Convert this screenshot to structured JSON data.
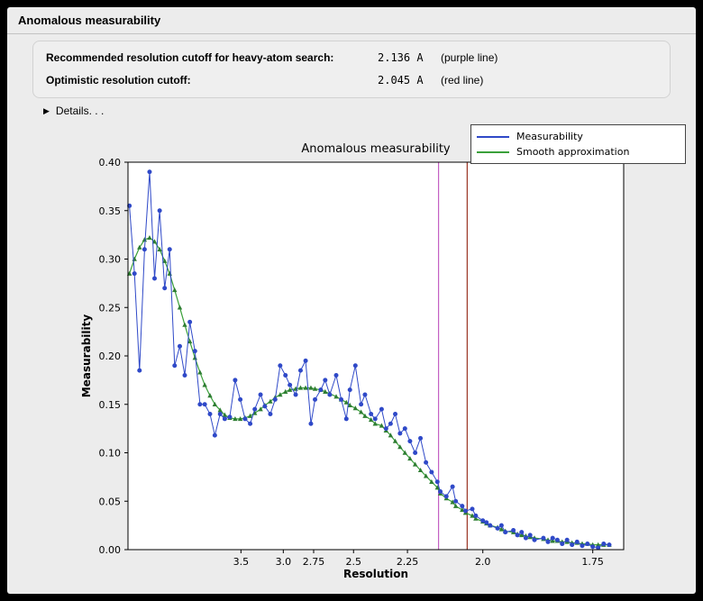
{
  "window": {
    "title": "Anomalous measurability"
  },
  "info": {
    "rows": [
      {
        "label": "Recommended resolution cutoff for heavy-atom search:",
        "value": "2.136 A",
        "note": "(purple line)"
      },
      {
        "label": "Optimistic resolution cutoff:",
        "value": "2.045 A",
        "note": "(red line)"
      }
    ],
    "details_label": "Details. . ."
  },
  "colors": {
    "window_bg": "#ececec",
    "plot_bg": "#ffffff",
    "measurability_blue": "#2f49c8",
    "smooth_green": "#3aa03a",
    "smooth_marker_green": "#2e7d32",
    "purple_line": "#c45fc4",
    "red_line": "#993322"
  },
  "chart_data": {
    "type": "line",
    "title": "Anomalous measurability",
    "xlabel": "Resolution",
    "ylabel": "Measurability",
    "x_scale": "inverse_d_squared",
    "xlim_d": [
      18.3,
      1.695
    ],
    "ylim": [
      0.0,
      0.4
    ],
    "grid": false,
    "legend": {
      "position": "top-right"
    },
    "x_axis": {
      "ticks": [
        {
          "d": 3.5,
          "label": "3.5"
        },
        {
          "d": 3.0,
          "label": "3.0"
        },
        {
          "d": 2.75,
          "label": "2.75"
        },
        {
          "d": 2.5,
          "label": "2.5"
        },
        {
          "d": 2.25,
          "label": "2.25"
        },
        {
          "d": 2.0,
          "label": "2.0"
        },
        {
          "d": 1.75,
          "label": "1.75"
        }
      ]
    },
    "y_axis": {
      "range": [
        0.0,
        0.4
      ],
      "ticks": [
        {
          "v": 0.0,
          "label": "0.00"
        },
        {
          "v": 0.05,
          "label": "0.05"
        },
        {
          "v": 0.1,
          "label": "0.10"
        },
        {
          "v": 0.15,
          "label": "0.15"
        },
        {
          "v": 0.2,
          "label": "0.20"
        },
        {
          "v": 0.25,
          "label": "0.25"
        },
        {
          "v": 0.3,
          "label": "0.30"
        },
        {
          "v": 0.35,
          "label": "0.35"
        },
        {
          "v": 0.4,
          "label": "0.40"
        }
      ]
    },
    "vlines": [
      {
        "d": 2.136,
        "color": "#c45fc4",
        "name": "purple line"
      },
      {
        "d": 2.045,
        "color": "#993322",
        "name": "red line"
      }
    ],
    "x_d": [
      15.81,
      11.55,
      9.53,
      8.3,
      7.45,
      6.82,
      6.32,
      5.92,
      5.59,
      5.31,
      5.06,
      4.85,
      4.66,
      4.49,
      4.34,
      4.21,
      4.08,
      3.97,
      3.86,
      3.77,
      3.68,
      3.59,
      3.51,
      3.44,
      3.37,
      3.31,
      3.24,
      3.19,
      3.13,
      3.08,
      3.03,
      2.98,
      2.94,
      2.89,
      2.85,
      2.81,
      2.77,
      2.74,
      2.7,
      2.67,
      2.64,
      2.6,
      2.57,
      2.54,
      2.52,
      2.49,
      2.46,
      2.44,
      2.41,
      2.39,
      2.36,
      2.34,
      2.32,
      2.3,
      2.28,
      2.26,
      2.24,
      2.22,
      2.2,
      2.18,
      2.16,
      2.14,
      2.13,
      2.11,
      2.09,
      2.08,
      2.06,
      2.05,
      2.03,
      2.02,
      2.0,
      1.99,
      1.98,
      1.96,
      1.95,
      1.94,
      1.92,
      1.91,
      1.9,
      1.89,
      1.88,
      1.87,
      1.85,
      1.84,
      1.83,
      1.82,
      1.81,
      1.8,
      1.79,
      1.78,
      1.77,
      1.76,
      1.75,
      1.74,
      1.73,
      1.72
    ],
    "series": [
      {
        "name": "Measurability",
        "color": "#2f49c8",
        "marker": "circle",
        "values": [
          0.355,
          0.285,
          0.185,
          0.31,
          0.39,
          0.28,
          0.35,
          0.27,
          0.31,
          0.19,
          0.21,
          0.18,
          0.235,
          0.205,
          0.15,
          0.15,
          0.14,
          0.118,
          0.14,
          0.135,
          0.137,
          0.175,
          0.155,
          0.135,
          0.13,
          0.145,
          0.16,
          0.148,
          0.14,
          0.155,
          0.19,
          0.18,
          0.17,
          0.16,
          0.185,
          0.195,
          0.13,
          0.155,
          0.165,
          0.175,
          0.16,
          0.18,
          0.155,
          0.135,
          0.165,
          0.19,
          0.15,
          0.16,
          0.14,
          0.135,
          0.145,
          0.125,
          0.13,
          0.14,
          0.12,
          0.125,
          0.112,
          0.1,
          0.115,
          0.09,
          0.08,
          0.07,
          0.06,
          0.055,
          0.065,
          0.05,
          0.045,
          0.04,
          0.042,
          0.035,
          0.03,
          0.028,
          0.025,
          0.022,
          0.025,
          0.018,
          0.02,
          0.015,
          0.018,
          0.012,
          0.015,
          0.01,
          0.012,
          0.008,
          0.012,
          0.01,
          0.006,
          0.01,
          0.005,
          0.008,
          0.004,
          0.006,
          0.003,
          0.002,
          0.006,
          0.005
        ]
      },
      {
        "name": "Smooth approximation",
        "color": "#3aa03a",
        "marker": "triangle",
        "marker_color": "#2e7d32",
        "values": [
          0.285,
          0.3,
          0.312,
          0.32,
          0.322,
          0.318,
          0.31,
          0.298,
          0.285,
          0.268,
          0.25,
          0.232,
          0.215,
          0.198,
          0.183,
          0.17,
          0.159,
          0.15,
          0.144,
          0.139,
          0.136,
          0.135,
          0.135,
          0.136,
          0.138,
          0.141,
          0.145,
          0.149,
          0.153,
          0.157,
          0.16,
          0.163,
          0.165,
          0.166,
          0.167,
          0.167,
          0.167,
          0.166,
          0.165,
          0.163,
          0.161,
          0.158,
          0.155,
          0.152,
          0.149,
          0.146,
          0.142,
          0.138,
          0.134,
          0.13,
          0.128,
          0.123,
          0.118,
          0.112,
          0.106,
          0.1,
          0.094,
          0.088,
          0.082,
          0.076,
          0.07,
          0.064,
          0.058,
          0.053,
          0.049,
          0.045,
          0.041,
          0.038,
          0.035,
          0.032,
          0.029,
          0.027,
          0.025,
          0.023,
          0.021,
          0.019,
          0.018,
          0.016,
          0.015,
          0.014,
          0.013,
          0.012,
          0.011,
          0.01,
          0.009,
          0.009,
          0.008,
          0.008,
          0.007,
          0.007,
          0.006,
          0.006,
          0.005,
          0.005,
          0.005,
          0.005
        ]
      }
    ]
  }
}
